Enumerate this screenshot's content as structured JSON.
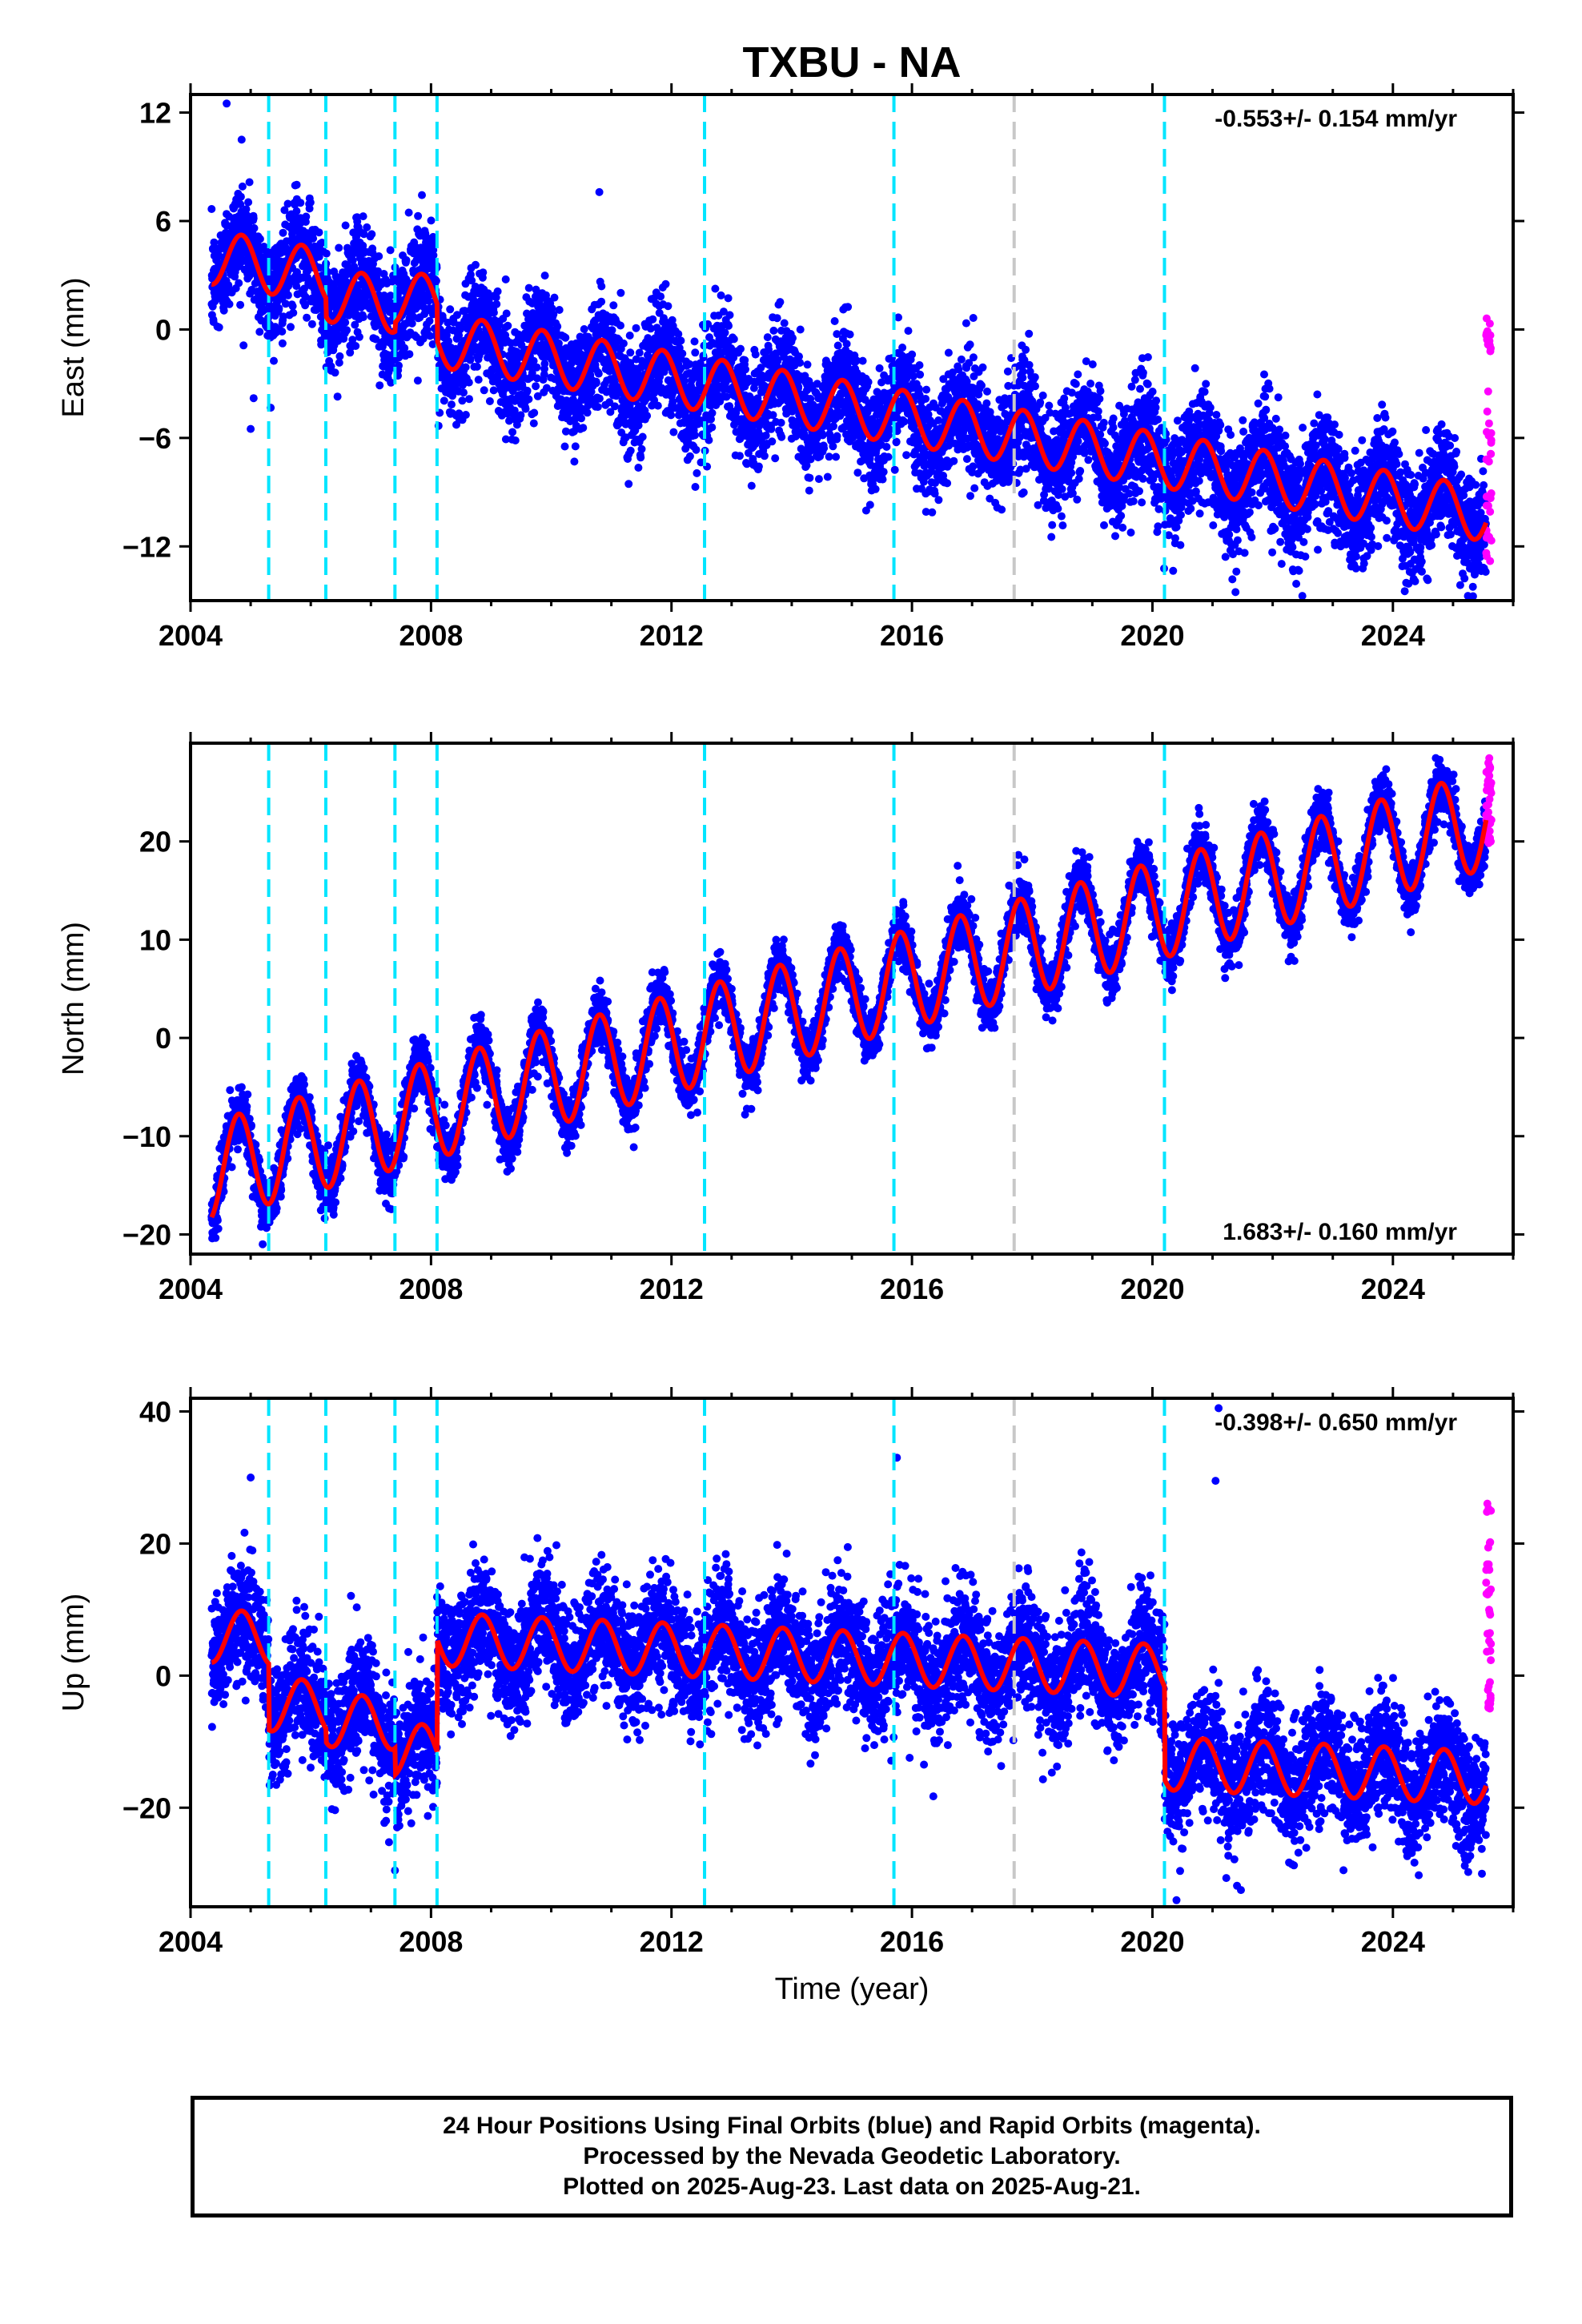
{
  "title": "TXBU - NA",
  "colors": {
    "final_orbits": "#0000ff",
    "rapid_orbits": "#ff00ff",
    "model": "#ff0000",
    "equipment_change": "#00e5ff",
    "other_event": "#c8c8c8"
  },
  "chart_data": [
    {
      "type": "scatter",
      "panel": "east",
      "title": "TXBU - NA",
      "ylabel": "East (mm)",
      "xlabel": "",
      "xlim": [
        2004.0,
        2026.0
      ],
      "ylim": [
        -15,
        13
      ],
      "xticks": [
        2004,
        2008,
        2012,
        2016,
        2020,
        2024
      ],
      "yticks": [
        -12,
        -6,
        0,
        6,
        12
      ],
      "ytick_labels": [
        "−12",
        "−6",
        "0",
        "6",
        "12"
      ],
      "rate_label": "-0.553+/- 0.154 mm/yr",
      "rate_position": "top-right",
      "event_lines_cyan": [
        2005.3,
        2006.25,
        2007.4,
        2008.1,
        2012.55,
        2015.7,
        2020.2
      ],
      "event_lines_gray": [
        2017.7
      ],
      "model": {
        "start": 2004.35,
        "end": 2025.55,
        "rate": -0.553,
        "intercept_at_2004_35": 4.0,
        "annual_amplitude": 1.5,
        "annual_phase": 0.6,
        "steps": [
          {
            "year": 2005.3,
            "offset": 0
          },
          {
            "year": 2006.25,
            "offset": -1.0
          },
          {
            "year": 2007.4,
            "offset": 0.5
          },
          {
            "year": 2008.1,
            "offset": -2.0
          }
        ]
      },
      "scatter_noise_sd": 1.5,
      "rapid_orbits": {
        "x_range": [
          2025.55,
          2025.64
        ],
        "y_range": [
          -13.5,
          1.3
        ]
      },
      "outliers": [
        {
          "x": 2004.6,
          "y": 12.5
        },
        {
          "x": 2005.0,
          "y": -5.5
        },
        {
          "x": 2005.05,
          "y": -3.8
        },
        {
          "x": 2004.85,
          "y": 10.5
        },
        {
          "x": 2010.6,
          "y": -4.6
        },
        {
          "x": 2011.2,
          "y": -5.0
        },
        {
          "x": 2010.8,
          "y": 7.6
        }
      ]
    },
    {
      "type": "scatter",
      "panel": "north",
      "ylabel": "North (mm)",
      "xlabel": "",
      "xlim": [
        2004.0,
        2026.0
      ],
      "ylim": [
        -22,
        30
      ],
      "xticks": [
        2004,
        2008,
        2012,
        2016,
        2020,
        2024
      ],
      "yticks": [
        -20,
        -10,
        0,
        10,
        20
      ],
      "ytick_labels": [
        "−20",
        "−10",
        "0",
        "10",
        "20"
      ],
      "rate_label": "1.683+/- 0.160 mm/yr",
      "rate_position": "bottom-right",
      "event_lines_cyan": [
        2005.3,
        2006.25,
        2007.4,
        2008.1,
        2012.55,
        2015.7,
        2020.2
      ],
      "event_lines_gray": [
        2017.7
      ],
      "model": {
        "start": 2004.35,
        "end": 2025.55,
        "rate": 1.683,
        "intercept_at_2004_35": -13.5,
        "annual_amplitude": 5.0,
        "annual_phase": 0.55,
        "steps": []
      },
      "scatter_noise_sd": 1.4,
      "rapid_orbits": {
        "x_range": [
          2025.55,
          2025.64
        ],
        "y_range": [
          19,
          29
        ]
      },
      "outliers": [
        {
          "x": 2005.2,
          "y": -21.0
        },
        {
          "x": 2023.8,
          "y": 26.5
        }
      ]
    },
    {
      "type": "scatter",
      "panel": "up",
      "ylabel": "Up (mm)",
      "xlabel": "Time (year)",
      "xlim": [
        2004.0,
        2026.0
      ],
      "ylim": [
        -35,
        42
      ],
      "xticks": [
        2004,
        2008,
        2012,
        2016,
        2020,
        2024
      ],
      "yticks": [
        -20,
        0,
        20,
        40
      ],
      "ytick_labels": [
        "−20",
        "0",
        "20",
        "40"
      ],
      "rate_label": "-0.398+/- 0.650 mm/yr",
      "rate_position": "top-right",
      "event_lines_cyan": [
        2005.3,
        2006.25,
        2007.4,
        2008.1,
        2012.55,
        2015.7,
        2020.2
      ],
      "event_lines_gray": [
        2017.7
      ],
      "model": {
        "start": 2004.35,
        "end": 2025.55,
        "rate": -0.398,
        "intercept_at_2004_35": 6.0,
        "annual_amplitude": 4.0,
        "annual_phase": 0.6,
        "steps": [
          {
            "year": 2005.3,
            "offset": -10.0
          },
          {
            "year": 2006.25,
            "offset": -2.0
          },
          {
            "year": 2007.4,
            "offset": -4.0
          },
          {
            "year": 2008.1,
            "offset": 17.0
          },
          {
            "year": 2020.2,
            "offset": -14.0
          }
        ]
      },
      "scatter_noise_sd": 4.5,
      "rapid_orbits": {
        "x_range": [
          2025.55,
          2025.64
        ],
        "y_range": [
          -5,
          26.5
        ]
      },
      "outliers": [
        {
          "x": 2005.0,
          "y": 30.0
        },
        {
          "x": 2015.75,
          "y": 33.0
        },
        {
          "x": 2021.1,
          "y": 40.5
        },
        {
          "x": 2021.05,
          "y": 29.5
        },
        {
          "x": 2020.4,
          "y": -34.0
        },
        {
          "x": 2007.4,
          "y": -29.5
        }
      ]
    }
  ],
  "footer": {
    "line1": "24 Hour Positions Using Final Orbits (blue) and Rapid Orbits (magenta).",
    "line2": "Processed by the Nevada Geodetic Laboratory.",
    "line3": "Plotted on 2025-Aug-23. Last data on 2025-Aug-21."
  }
}
